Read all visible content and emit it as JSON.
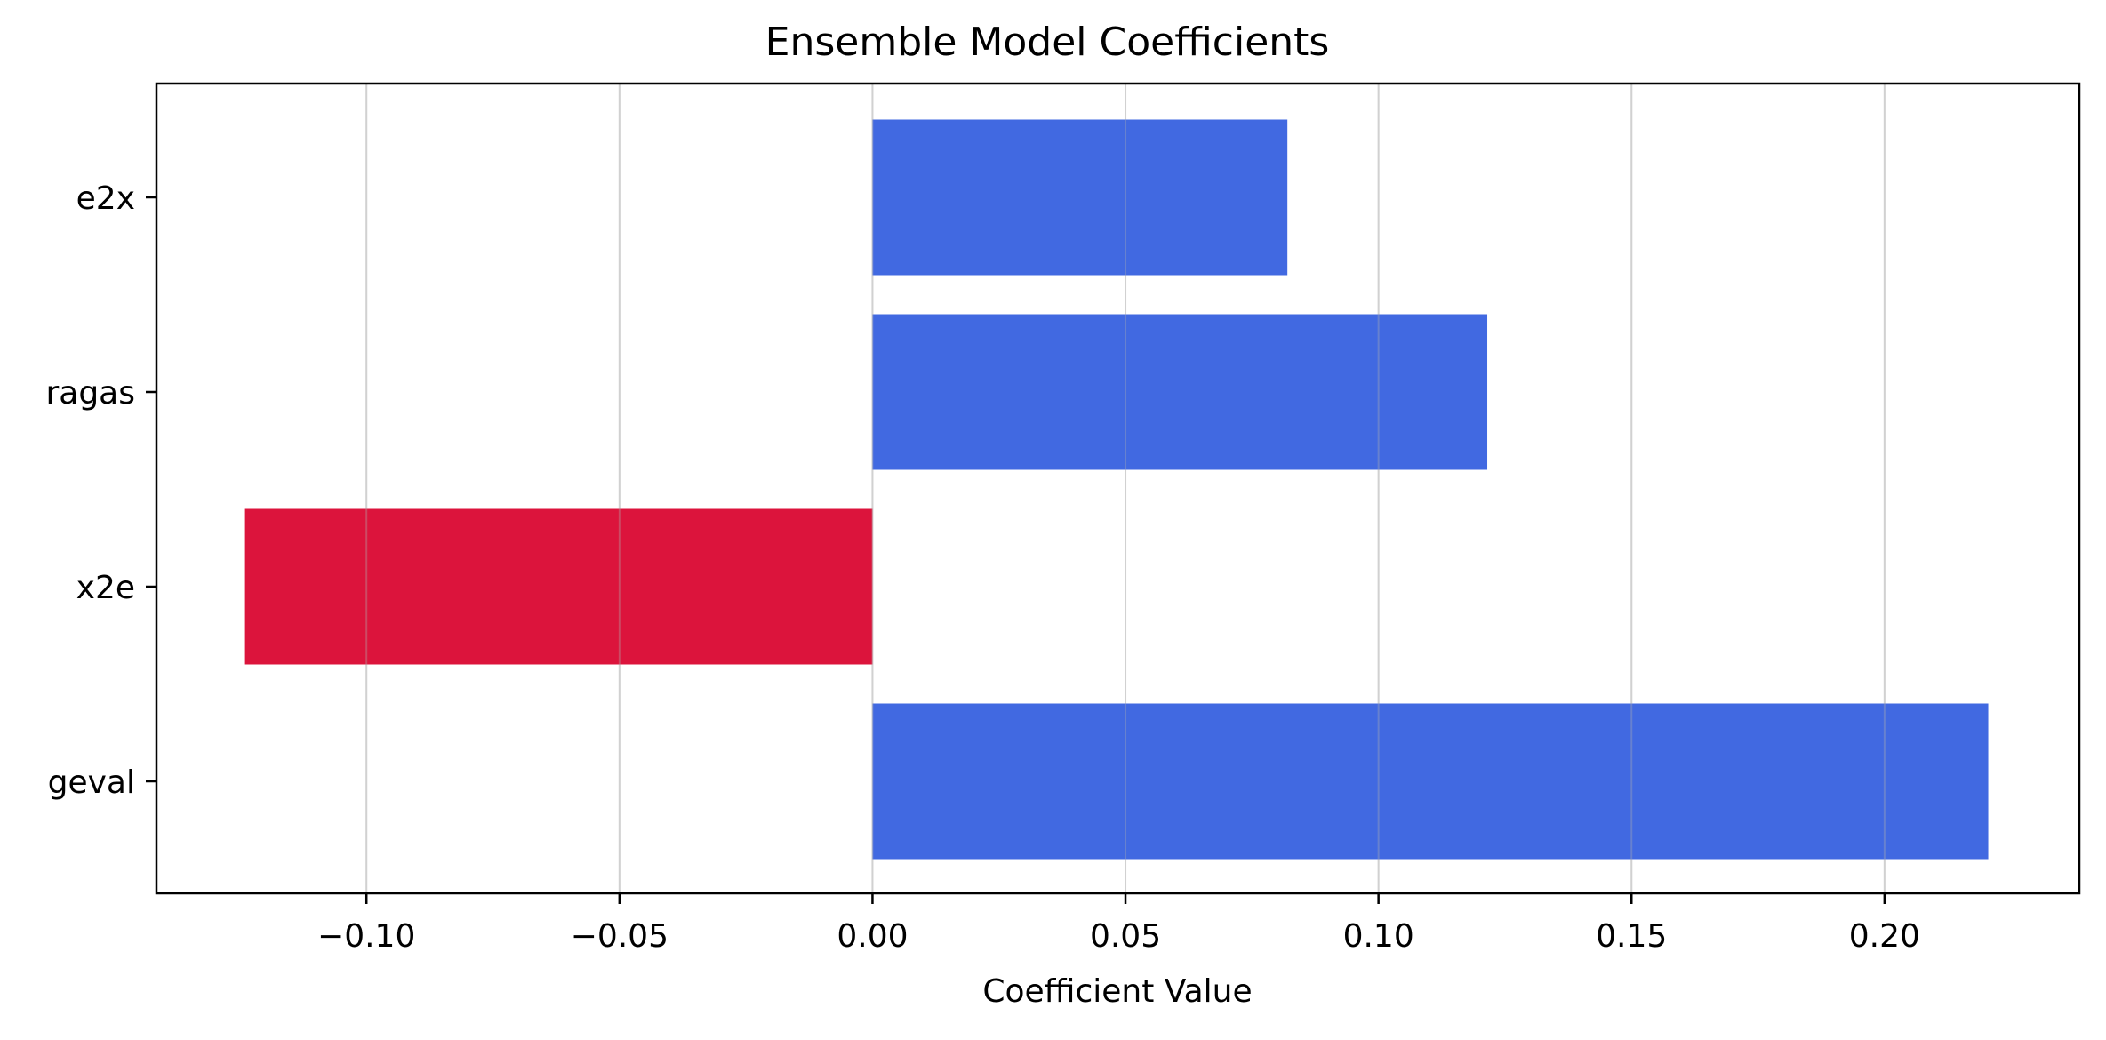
{
  "chart_data": {
    "type": "bar",
    "orientation": "horizontal",
    "title": "Ensemble Model Coefficients",
    "xlabel": "Coefficient Value",
    "ylabel": "",
    "categories": [
      "e2x",
      "ragas",
      "x2e",
      "geval"
    ],
    "values": [
      0.082,
      0.1215,
      -0.124,
      0.2205
    ],
    "xlim": [
      -0.1415,
      0.2385
    ],
    "xticks": [
      -0.1,
      -0.05,
      0.0,
      0.05,
      0.1,
      0.15,
      0.2
    ],
    "xtick_labels": [
      "−0.10",
      "−0.05",
      "0.00",
      "0.05",
      "0.10",
      "0.15",
      "0.20"
    ],
    "grid": "x-axis vertical lines",
    "legend": "none",
    "colors": {
      "positive": "#4169E1",
      "negative": "#DC143C",
      "grid": "#e3e3e3",
      "axis": "#000000"
    }
  }
}
